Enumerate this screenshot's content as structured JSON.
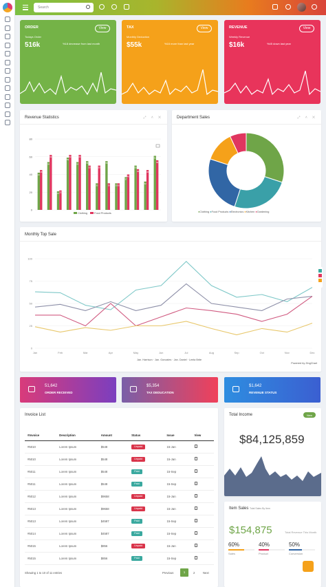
{
  "header": {
    "search_placeholder": "Search"
  },
  "stats": [
    {
      "title": "ORDER",
      "subtitle": "Todays Order",
      "value": "516k",
      "note": "%18 decrease from last month",
      "button": "View",
      "color": "#74b347"
    },
    {
      "title": "TAX",
      "subtitle": "Monthly Deduction",
      "value": "$55k",
      "note": "%16 more than last year",
      "button": "View",
      "color": "#f5a11a"
    },
    {
      "title": "REVENUE",
      "subtitle": "Weekly Revenue",
      "value": "$16k",
      "note": "%45 down last year",
      "button": "View",
      "color": "#e8345b"
    }
  ],
  "revenue": {
    "title": "Revenue Statistics",
    "legend": [
      "Clothing",
      "Food Products"
    ]
  },
  "dept": {
    "title": "Department Sales",
    "legend": [
      "Clothing",
      "Food Products",
      "Electronics",
      "Kitchen",
      "Gardening"
    ]
  },
  "monthly": {
    "title": "Monthly Top Sale",
    "legend": [
      "Jan. Harrison",
      "Jan. Gonzales",
      "Jan. Daniel",
      "Leela Brite"
    ],
    "powered": "Powered by ZingChart"
  },
  "chart_data": [
    {
      "type": "bar",
      "title": "Revenue Statistics",
      "ylim": [
        0,
        80
      ],
      "yticks": [
        0,
        20,
        40,
        60,
        80
      ],
      "series": [
        {
          "name": "Clothing",
          "color": "#6fa548",
          "values": [
            42,
            54,
            21,
            59,
            54,
            55,
            30,
            55,
            30,
            37,
            50,
            32,
            61
          ]
        },
        {
          "name": "Food Products",
          "color": "#e0365f",
          "values": [
            45,
            62,
            22,
            62,
            62,
            50,
            50,
            30,
            30,
            40,
            46,
            45,
            56
          ]
        }
      ]
    },
    {
      "type": "pie",
      "title": "Department Sales",
      "categories": [
        "Clothing",
        "Food Products",
        "Electronics",
        "Kitchen",
        "Gardening"
      ],
      "values": [
        30,
        25,
        25,
        13,
        7
      ],
      "colors": [
        "#6fa548",
        "#3aa0a8",
        "#3166a5",
        "#f5a11a",
        "#e0365f"
      ]
    },
    {
      "type": "line",
      "title": "Monthly Top Sale",
      "x": [
        "Jan",
        "Feb",
        "Mar",
        "Apr",
        "May",
        "Jun",
        "Jul",
        "Aug",
        "Sep",
        "Oct",
        "Nov",
        "Dec"
      ],
      "yticks": [
        100,
        75,
        50,
        25,
        0
      ],
      "ylim": [
        0,
        100
      ],
      "series": [
        {
          "name": "Jan. Harrison",
          "color": "#7ec8c8",
          "values": [
            63,
            62,
            48,
            43,
            65,
            70,
            97,
            70,
            57,
            60,
            52,
            68
          ]
        },
        {
          "name": "Jan. Gonzales",
          "color": "#8d8fa8",
          "values": [
            46,
            49,
            42,
            52,
            42,
            48,
            72,
            50,
            46,
            42,
            55,
            58
          ]
        },
        {
          "name": "Jan. Daniel",
          "color": "#d05a80",
          "values": [
            37,
            37,
            25,
            50,
            25,
            35,
            45,
            42,
            38,
            30,
            38,
            58
          ]
        },
        {
          "name": "Leela Brite",
          "color": "#e8c76a",
          "values": [
            24,
            18,
            23,
            20,
            25,
            25,
            30,
            22,
            15,
            22,
            18,
            28
          ]
        }
      ]
    }
  ],
  "actions": [
    {
      "value": "51,642",
      "label": "ORDER RECEIVED",
      "color": "linear-gradient(90deg,#d93b7a,#7b3fbf)"
    },
    {
      "value": "$5,354",
      "label": "TAX DEDUCATION",
      "color": "linear-gradient(90deg,#7a5fa8,#f0405a)"
    },
    {
      "value": "$1,642",
      "label": "REVENUE STATUS",
      "color": "linear-gradient(90deg,#2e8de0,#3b5fd1)"
    }
  ],
  "invoice": {
    "title": "Invoice List",
    "columns": [
      "#Invoice",
      "Description",
      "Amount",
      "Status",
      "Issue",
      "View"
    ],
    "rows": [
      [
        "#5010",
        "Lorem Ipsum",
        "$548",
        "Unpaid",
        "15-Jan"
      ],
      [
        "#5010",
        "Lorem Ipsum",
        "$548",
        "Unpaid",
        "15-Jan"
      ],
      [
        "#5011",
        "Lorem Ipsum",
        "$548",
        "Paid",
        "15-Sep"
      ],
      [
        "#5011",
        "Lorem Ipsum",
        "$548",
        "Paid",
        "15-Sep"
      ],
      [
        "#5012",
        "Lorem Ipsum",
        "$9658",
        "Unpaid",
        "15-Jan"
      ],
      [
        "#5013",
        "Lorem Ipsum",
        "$9658",
        "Unpaid",
        "15-Jan"
      ],
      [
        "#5013",
        "Lorem Ipsum",
        "$4587",
        "Paid",
        "15-Sep"
      ],
      [
        "#5014",
        "Lorem Ipsum",
        "$4587",
        "Paid",
        "15-Sep"
      ],
      [
        "#5015",
        "Lorem Ipsum",
        "$856",
        "Unpaid",
        "15-Jan"
      ],
      [
        "#5015",
        "Lorem Ipsum",
        "$856",
        "Paid",
        "15-Sep"
      ]
    ],
    "footer": "Showing 1 to 10 of 11 entries",
    "prev": "Previous",
    "page1": "1",
    "page2": "2",
    "next": "Next"
  },
  "income": {
    "title": "Total Income",
    "badge": "New",
    "value": "$84,125,859"
  },
  "item_sales": {
    "title": "Item Sales",
    "subtitle": "Total Sales By Item",
    "value": "$154,875",
    "value_label": "Total Revenue This Month",
    "metrics": [
      {
        "pct": "60%",
        "label": "Sales",
        "fill": 0.6,
        "color": "#f5a11a"
      },
      {
        "pct": "40%",
        "label": "Product",
        "fill": 0.4,
        "color": "#e0365f"
      },
      {
        "pct": "50%",
        "label": "Conversion",
        "fill": 0.5,
        "color": "#3166a5"
      }
    ]
  }
}
